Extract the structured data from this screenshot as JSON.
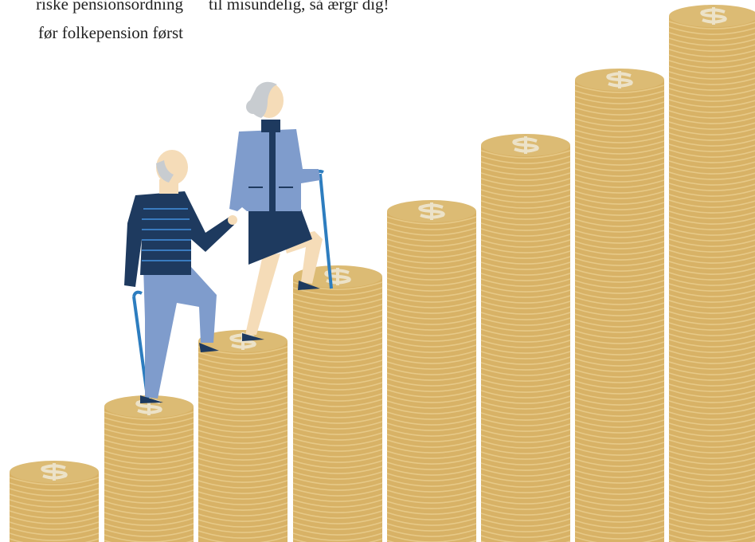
{
  "left_text": {
    "lines": [
      "riske pensionsordning",
      "før folkepension først"
    ]
  },
  "right_text": {
    "lines": [
      "til misundelig, så ærgr dig!"
    ]
  }
}
